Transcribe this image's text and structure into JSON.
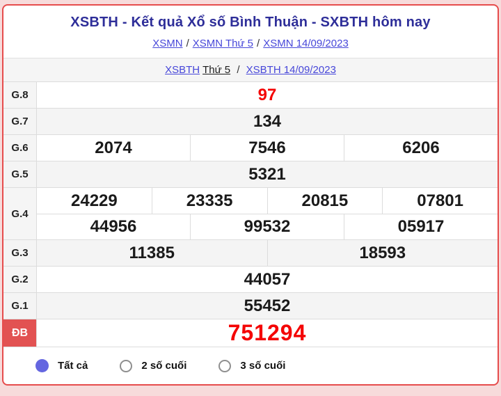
{
  "header": {
    "title": "XSBTH - Kết quả Xổ số Bình Thuận - SXBTH hôm nay",
    "breadcrumb": {
      "links": [
        "XSMN",
        "XSMN Thứ 5",
        "XSMN 14/09/2023"
      ],
      "separator": "/"
    }
  },
  "subcrumb": {
    "prefix_link": "XSBTH",
    "static_text": "Thứ 5",
    "separator": "/",
    "date_link": "XSBTH 14/09/2023"
  },
  "results": {
    "rows": [
      {
        "id": "g8",
        "label": "G.8",
        "groups": [
          [
            "97"
          ]
        ],
        "value_color": "red",
        "shaded": false,
        "special": false
      },
      {
        "id": "g7",
        "label": "G.7",
        "groups": [
          [
            "134"
          ]
        ],
        "value_color": "black",
        "shaded": true,
        "special": false
      },
      {
        "id": "g6",
        "label": "G.6",
        "groups": [
          [
            "2074",
            "7546",
            "6206"
          ]
        ],
        "value_color": "black",
        "shaded": false,
        "special": false
      },
      {
        "id": "g5",
        "label": "G.5",
        "groups": [
          [
            "5321"
          ]
        ],
        "value_color": "black",
        "shaded": true,
        "special": false
      },
      {
        "id": "g4",
        "label": "G.4",
        "groups": [
          [
            "24229",
            "23335",
            "20815",
            "07801"
          ],
          [
            "44956",
            "99532",
            "05917"
          ]
        ],
        "value_color": "black",
        "shaded": false,
        "special": false
      },
      {
        "id": "g3",
        "label": "G.3",
        "groups": [
          [
            "11385",
            "18593"
          ]
        ],
        "value_color": "black",
        "shaded": true,
        "special": false
      },
      {
        "id": "g2",
        "label": "G.2",
        "groups": [
          [
            "44057"
          ]
        ],
        "value_color": "black",
        "shaded": false,
        "special": false
      },
      {
        "id": "g1",
        "label": "G.1",
        "groups": [
          [
            "55452"
          ]
        ],
        "value_color": "black",
        "shaded": true,
        "special": false
      },
      {
        "id": "db",
        "label": "ĐB",
        "groups": [
          [
            "751294"
          ]
        ],
        "value_color": "red",
        "shaded": false,
        "special": true
      }
    ]
  },
  "filters": {
    "options": [
      {
        "id": "all",
        "label": "Tất cả",
        "selected": true
      },
      {
        "id": "last2",
        "label": "2 số cuối",
        "selected": false
      },
      {
        "id": "last3",
        "label": "3 số cuối",
        "selected": false
      }
    ]
  },
  "colors": {
    "border_red": "#e64c4c",
    "special_label_bg": "#e25252",
    "title_navy": "#2e2e99",
    "link_blue": "#4747d9",
    "number_red": "#f40404",
    "shaded_row": "#f4f4f4",
    "radio_selected": "#6466e0"
  }
}
